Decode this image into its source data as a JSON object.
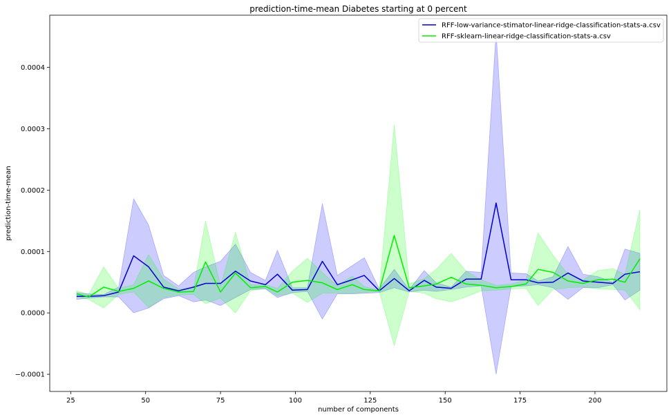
{
  "chart_data": {
    "type": "line",
    "title": "prediction-time-mean Diabetes starting at 0 percent",
    "xlabel": "number of components",
    "ylabel": "prediction-time-mean",
    "xlim": [
      18,
      224
    ],
    "ylim": [
      -0.000128,
      0.000485
    ],
    "xticks": [
      25,
      50,
      75,
      100,
      125,
      150,
      175,
      200
    ],
    "xtick_labels": [
      "25",
      "50",
      "75",
      "100",
      "125",
      "150",
      "175",
      "200"
    ],
    "yticks": [
      -0.0001,
      0.0,
      0.0001,
      0.0002,
      0.0003,
      0.0004
    ],
    "ytick_labels": [
      "−0.0001",
      "0.0000",
      "0.0001",
      "0.0002",
      "0.0003",
      "0.0004"
    ],
    "legend_position": "top-right",
    "x": [
      27,
      31,
      36,
      41,
      46,
      51,
      56,
      61,
      66,
      70,
      75,
      80,
      85,
      90,
      94,
      99,
      104,
      109,
      114,
      119,
      123,
      128,
      133,
      138,
      143,
      147,
      152,
      157,
      162,
      167,
      172,
      177,
      181,
      186,
      191,
      196,
      201,
      206,
      210,
      215
    ],
    "series": [
      {
        "name": "RFF-low-variance-stimator-linear-ridge-classification-stats-a.csv",
        "color": "#0000cc",
        "fill_color": "#0000ff",
        "values": [
          2.7e-05,
          2.7e-05,
          2.8e-05,
          3.4e-05,
          9.3e-05,
          7.5e-05,
          4.2e-05,
          3.6e-05,
          4.2e-05,
          4.8e-05,
          4.8e-05,
          6.8e-05,
          5.2e-05,
          4.6e-05,
          6.3e-05,
          3.7e-05,
          3.8e-05,
          8.4e-05,
          4.6e-05,
          5.4e-05,
          6.1e-05,
          3.6e-05,
          5.6e-05,
          3.6e-05,
          5.3e-05,
          4.2e-05,
          4e-05,
          5.5e-05,
          5.5e-05,
          0.000179,
          5.4e-05,
          5.4e-05,
          4.9e-05,
          5e-05,
          6.5e-05,
          5.2e-05,
          5e-05,
          4.8e-05,
          6.3e-05,
          6.7e-05
        ],
        "lower": [
          2.2e-05,
          2.4e-05,
          2.6e-05,
          2.6e-05,
          0.0,
          8e-06,
          2.3e-05,
          2.8e-05,
          1.8e-05,
          2.1e-05,
          1.2e-05,
          2.5e-05,
          3.8e-05,
          3.9e-05,
          2.5e-05,
          3.3e-05,
          3.5e-05,
          -1e-05,
          3.1e-05,
          3.1e-05,
          3.2e-05,
          3.3e-05,
          4.1e-05,
          3.4e-05,
          3.7e-05,
          3.5e-05,
          3.8e-05,
          4.2e-05,
          4.4e-05,
          -0.0001,
          4.3e-05,
          4.4e-05,
          4.6e-05,
          4.1e-05,
          2.2e-05,
          4.1e-05,
          4.1e-05,
          4.6e-05,
          2.1e-05,
          3.7e-05
        ],
        "upper": [
          3.3e-05,
          3.1e-05,
          3e-05,
          4.2e-05,
          0.000186,
          0.000143,
          6.1e-05,
          4.4e-05,
          6.6e-05,
          7.5e-05,
          8.4e-05,
          0.000112,
          6.6e-05,
          5.3e-05,
          0.000102,
          4.1e-05,
          4.1e-05,
          0.000178,
          6.1e-05,
          7.7e-05,
          9e-05,
          3.9e-05,
          7.1e-05,
          3.8e-05,
          6.9e-05,
          4.9e-05,
          4.2e-05,
          6.8e-05,
          6.6e-05,
          0.000458,
          6.5e-05,
          6.4e-05,
          5.2e-05,
          5.9e-05,
          0.000108,
          6.3e-05,
          5.9e-05,
          5e-05,
          0.000104,
          9.7e-05
        ]
      },
      {
        "name": "RFF-sklearn-linear-ridge-classification-stats-a.csv",
        "color": "#00ee00",
        "fill_color": "#00ff00",
        "values": [
          3.1e-05,
          2.6e-05,
          4.2e-05,
          3.5e-05,
          4e-05,
          5.2e-05,
          4e-05,
          3.4e-05,
          3.5e-05,
          8.3e-05,
          3.4e-05,
          6.5e-05,
          4.1e-05,
          4.3e-05,
          3.4e-05,
          5e-05,
          5.3e-05,
          4.9e-05,
          3.8e-05,
          4.6e-05,
          3.8e-05,
          3.6e-05,
          0.000126,
          4.1e-05,
          4.4e-05,
          4.7e-05,
          5.8e-05,
          4.7e-05,
          4.5e-05,
          4.1e-05,
          4.3e-05,
          4.7e-05,
          7.1e-05,
          6.6e-05,
          5.2e-05,
          4.8e-05,
          5.4e-05,
          5.5e-05,
          5e-05,
          8.8e-05
        ],
        "lower": [
          2.6e-05,
          2.2e-05,
          8e-06,
          3e-05,
          3.4e-05,
          9e-06,
          2.5e-05,
          2.9e-05,
          3e-05,
          1.5e-05,
          2.4e-05,
          0.0,
          3.6e-05,
          4e-05,
          2.8e-05,
          3.2e-05,
          1.7e-05,
          3.2e-05,
          3.2e-05,
          3.2e-05,
          3.3e-05,
          3.5e-05,
          -5.3e-05,
          3.5e-05,
          3.2e-05,
          2.3e-05,
          1.8e-05,
          2.6e-05,
          3.6e-05,
          3.7e-05,
          3.9e-05,
          4e-05,
          1.2e-05,
          3.8e-05,
          4.1e-05,
          4.2e-05,
          3.9e-05,
          3.8e-05,
          3.7e-05,
          5e-06
        ],
        "upper": [
          3.6e-05,
          3e-05,
          7.5e-05,
          4e-05,
          4.6e-05,
          9.5e-05,
          5.5e-05,
          3.9e-05,
          4e-05,
          0.00015,
          4.4e-05,
          0.000131,
          4.6e-05,
          4.6e-05,
          4e-05,
          6.8e-05,
          8.9e-05,
          6.6e-05,
          4.4e-05,
          6e-05,
          4.3e-05,
          3.7e-05,
          0.000307,
          4.7e-05,
          5.6e-05,
          7.1e-05,
          9.7e-05,
          6.8e-05,
          5.4e-05,
          4.5e-05,
          4.7e-05,
          5.4e-05,
          0.00013,
          9.4e-05,
          6.3e-05,
          5.4e-05,
          6.9e-05,
          7.2e-05,
          6.3e-05,
          0.000168
        ]
      }
    ]
  }
}
